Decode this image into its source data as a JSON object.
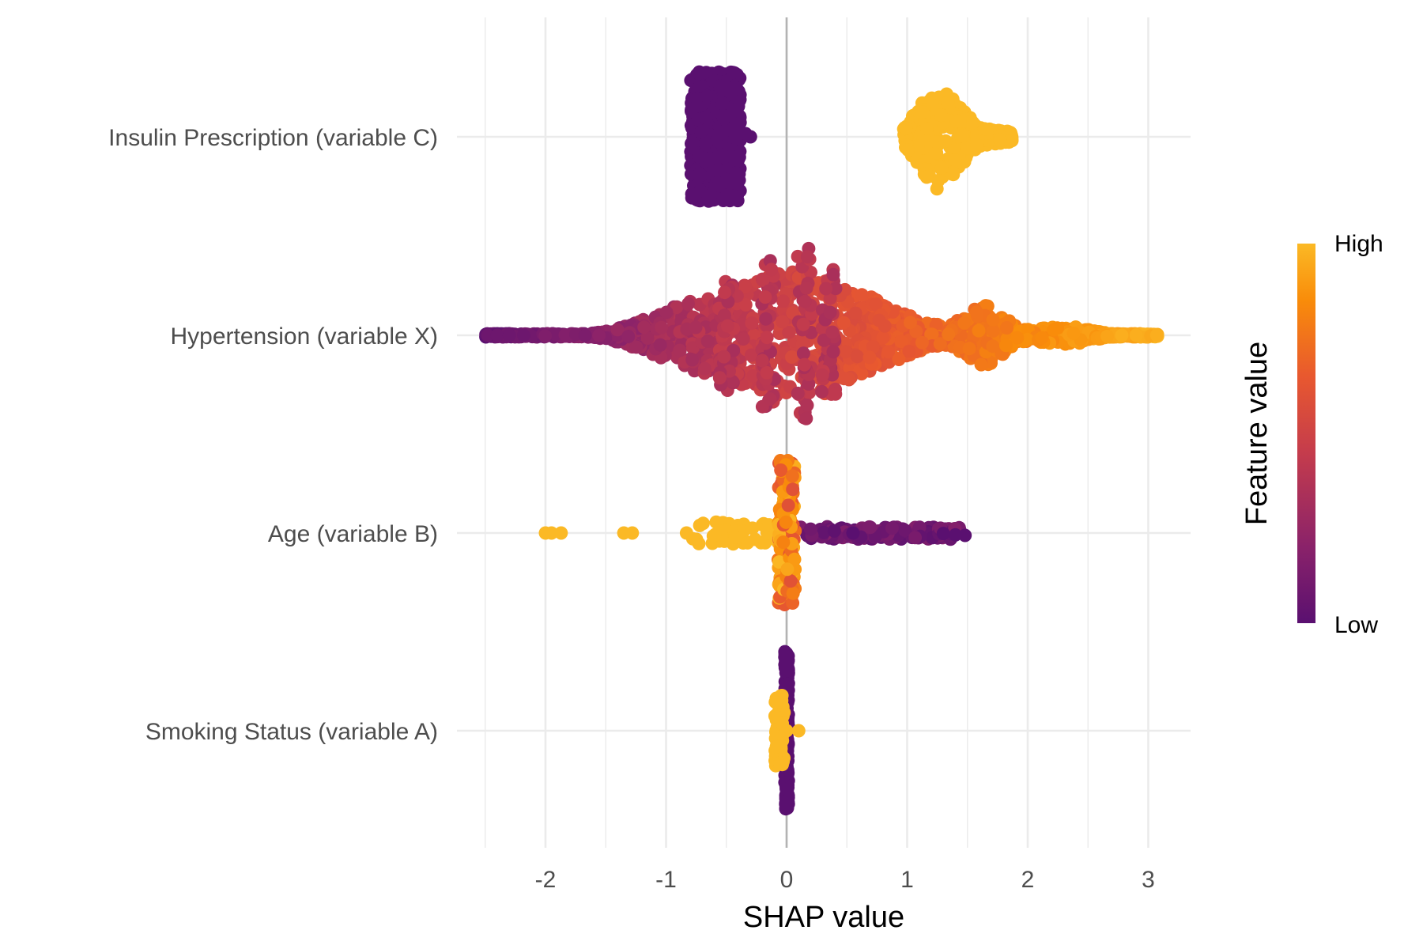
{
  "chart_data": {
    "type": "scatter",
    "subtype": "beeswarm",
    "title": "",
    "xlabel": "SHAP value",
    "ylabel": "",
    "xlim": [
      -2.6,
      3.2
    ],
    "x_ticks": [
      -2,
      -1,
      0,
      1,
      2,
      3
    ],
    "x_tick_labels": [
      "-2",
      "-1",
      "0",
      "1",
      "2",
      "3"
    ],
    "grid": true,
    "reference_line_x": 0,
    "features": [
      {
        "label": "Insulin Prescription (variable C)",
        "groups": [
          {
            "feature_value": "low",
            "shap_min": -0.8,
            "shap_max": -0.38,
            "center": -0.6,
            "outliers": [
              -0.3
            ]
          },
          {
            "feature_value": "high",
            "shap_min": 0.95,
            "shap_max": 1.88,
            "center": 1.25
          }
        ]
      },
      {
        "label": "Hypertension (variable X)",
        "shap_min": -2.5,
        "shap_max": 3.08
      },
      {
        "label": "Age (variable B)",
        "shap_min": -2.0,
        "shap_max": 1.48,
        "low_values_range": [
          0.1,
          1.48
        ],
        "high_values_points": [
          -2.0,
          -1.95,
          -1.87,
          -1.35,
          -1.28,
          -0.83
        ]
      },
      {
        "label": "Smoking Status (variable A)",
        "groups": [
          {
            "feature_value": "low",
            "shap_min": 0.0,
            "shap_max": 0.03
          },
          {
            "feature_value": "high",
            "shap_min": -0.1,
            "shap_max": 0.1
          }
        ]
      }
    ],
    "legend": {
      "title": "Feature value",
      "high_label": "High",
      "low_label": "Low",
      "placement": "right",
      "palette": [
        "#5a1070",
        "#8a226a",
        "#c53c4c",
        "#e8582f",
        "#f98c0a",
        "#fbb925"
      ]
    }
  }
}
